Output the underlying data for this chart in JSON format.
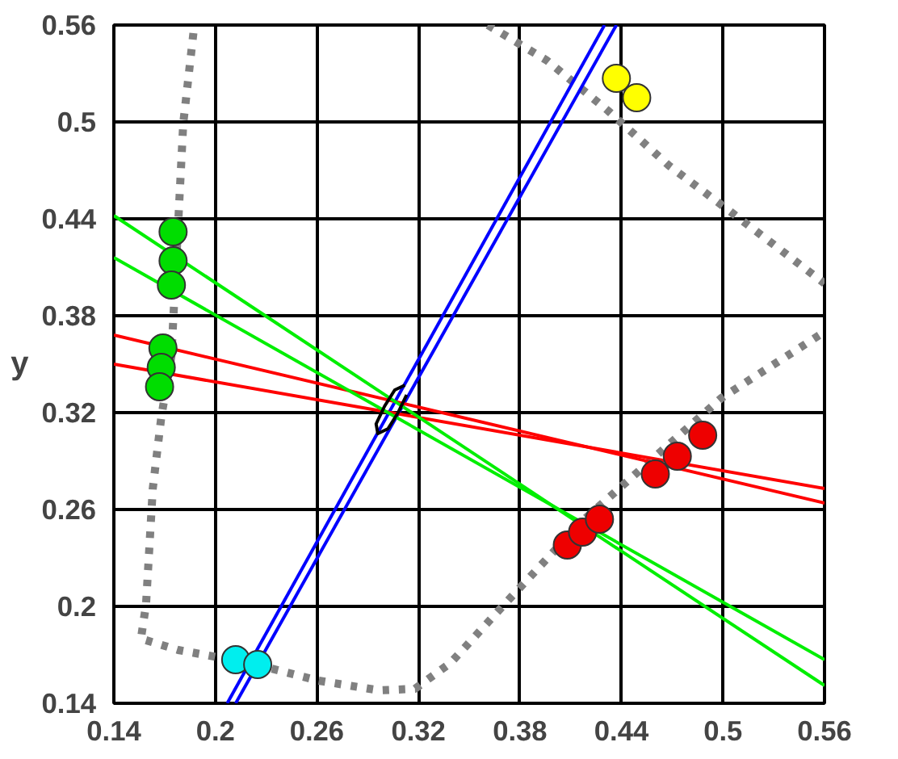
{
  "chart_data": {
    "type": "scatter",
    "ylabel": "y",
    "xlim": [
      0.14,
      0.56
    ],
    "ylim": [
      0.14,
      0.56
    ],
    "xticks": [
      0.14,
      0.2,
      0.26,
      0.32,
      0.38,
      0.44,
      0.5,
      0.56
    ],
    "yticks": [
      0.14,
      0.2,
      0.26,
      0.32,
      0.38,
      0.44,
      0.5,
      0.56
    ],
    "grid": true,
    "marker": "circle",
    "series": [
      {
        "type": "line",
        "line_style": "dotted",
        "marker": "none",
        "color": "#808080",
        "x": [
          0.187,
          0.181,
          0.178,
          0.174,
          0.168,
          0.163,
          0.159,
          0.156,
          0.178,
          0.22,
          0.261,
          0.297,
          0.318,
          0.339,
          0.375,
          0.416,
          0.458,
          0.499,
          0.56
        ],
        "values": [
          0.555,
          0.499,
          0.437,
          0.355,
          0.317,
          0.273,
          0.201,
          0.18,
          0.173,
          0.165,
          0.154,
          0.148,
          0.149,
          0.165,
          0.206,
          0.252,
          0.291,
          0.329,
          0.37
        ]
      },
      {
        "type": "line",
        "line_style": "dotted",
        "marker": "none",
        "color": "#808080",
        "x": [
          0.361,
          0.396,
          0.432,
          0.468,
          0.505,
          0.54,
          0.56
        ],
        "values": [
          0.56,
          0.538,
          0.507,
          0.473,
          0.444,
          0.416,
          0.4
        ]
      },
      {
        "type": "line",
        "line_style": "solid",
        "marker": "none",
        "color": "#0000ff",
        "x": [
          0.207,
          0.43
        ],
        "values": [
          0.14,
          0.56
        ]
      },
      {
        "type": "line",
        "line_style": "solid",
        "marker": "none",
        "color": "#0000ff",
        "x": [
          0.212,
          0.437
        ],
        "values": [
          0.14,
          0.56
        ]
      },
      {
        "type": "line",
        "line_style": "solid",
        "marker": "none",
        "color": "#ff0000",
        "x": [
          0.14,
          0.56
        ],
        "values": [
          0.368,
          0.264
        ]
      },
      {
        "type": "line",
        "line_style": "solid",
        "marker": "none",
        "color": "#ff0000",
        "x": [
          0.14,
          0.56
        ],
        "values": [
          0.35,
          0.273
        ]
      },
      {
        "type": "line",
        "line_style": "solid",
        "marker": "none",
        "color": "#00ee00",
        "x": [
          0.14,
          0.56
        ],
        "values": [
          0.442,
          0.151
        ]
      },
      {
        "type": "line",
        "line_style": "solid",
        "marker": "none",
        "color": "#00ee00",
        "x": [
          0.14,
          0.56
        ],
        "values": [
          0.416,
          0.167
        ]
      },
      {
        "type": "line",
        "line_style": "solid",
        "marker": "none",
        "color": "#000000",
        "x": [
          0.312,
          0.306,
          0.3,
          0.295,
          0.296,
          0.302,
          0.308,
          0.313
        ],
        "values": [
          0.337,
          0.334,
          0.324,
          0.313,
          0.307,
          0.31,
          0.32,
          0.331
        ]
      },
      {
        "color": "#ffff00",
        "x": [
          0.437,
          0.449
        ],
        "values": [
          0.527,
          0.515
        ]
      },
      {
        "color": "#00dd00",
        "x": [
          0.175,
          0.175,
          0.174,
          0.169,
          0.168,
          0.167
        ],
        "values": [
          0.432,
          0.414,
          0.399,
          0.36,
          0.348,
          0.336
        ]
      },
      {
        "color": "#00eeee",
        "x": [
          0.212,
          0.225
        ],
        "values": [
          0.167,
          0.164
        ]
      },
      {
        "color": "#ee0000",
        "x": [
          0.408,
          0.417,
          0.427,
          0.46,
          0.473,
          0.488
        ],
        "values": [
          0.238,
          0.246,
          0.254,
          0.282,
          0.293,
          0.306
        ]
      }
    ]
  }
}
